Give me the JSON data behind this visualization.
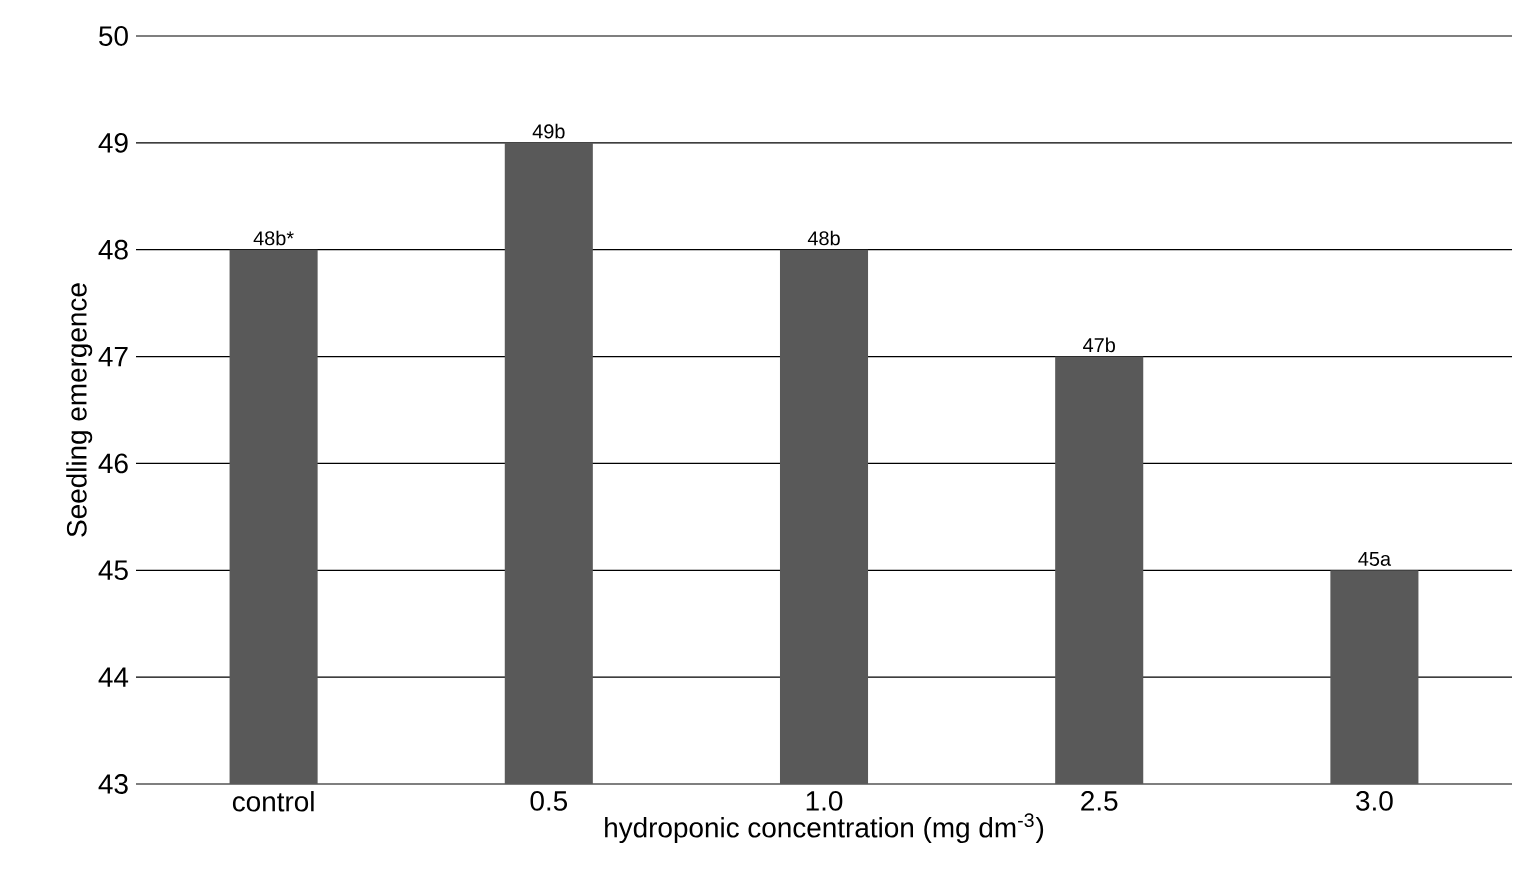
{
  "chart_data": {
    "type": "bar",
    "xlabel": "hydroponic concentration (mg dm$^{-3}$)",
    "ylabel": "Seedling emergence",
    "categories": [
      "control",
      "0.5",
      "1.0",
      "2.5",
      "3.0"
    ],
    "values": [
      48,
      49,
      48,
      47,
      45
    ],
    "value_labels": [
      "48b*",
      "49b",
      "48b",
      "47b",
      "45a"
    ],
    "color": "#595959",
    "ylim": [
      43,
      50
    ],
    "yticks": [
      43,
      44,
      45,
      46,
      47,
      48,
      49,
      50
    ],
    "grid": "y"
  }
}
